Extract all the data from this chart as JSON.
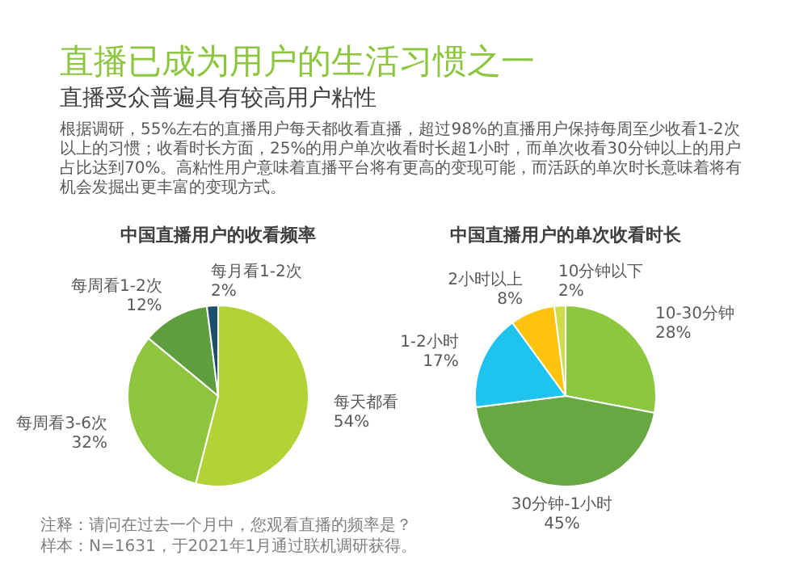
{
  "chart_data": [
    {
      "type": "other",
      "title": "直播已成为用户的生活习惯之一",
      "subtitle": "直播受众普遍具有较高用户粘性",
      "annotations": [
        "根据调研，55%左右的直播用户每天都收看直播，超过98%的直播用户保持每周至少收看1-2次以上的习惯；收看时长方面，25%的用户单次收看时长超1小时，而单次收看30分钟以上的用户占比达到70%。高粘性用户意味着直播平台将有更高的变现可能，而活跃的单次时长意味着将有机会发掘出更丰富的变现方式。"
      ]
    },
    {
      "type": "pie",
      "title": "中国直播用户的收看频率",
      "categories": [
        "每天都看",
        "每周看3-6次",
        "每周看1-2次",
        "每月看1-2次"
      ],
      "values": [
        54,
        32,
        12,
        2
      ],
      "value_labels": [
        "54%",
        "32%",
        "12%",
        "2%"
      ],
      "colors": [
        "#b3d236",
        "#8fc43e",
        "#5e9e3c",
        "#1c4e6e"
      ],
      "annotations": [
        "注释：请问在过去一个月中，您观看直播的频率是？",
        "样本：N=1631，于2021年1月通过联机调研获得。"
      ]
    },
    {
      "type": "pie",
      "title": "中国直播用户的单次收看时长",
      "categories": [
        "10-30分钟",
        "30分钟-1小时",
        "1-2小时",
        "2小时以上",
        "10分钟以下"
      ],
      "values": [
        28,
        45,
        17,
        8,
        2
      ],
      "value_labels": [
        "28%",
        "45%",
        "17%",
        "8%",
        "2%"
      ],
      "colors": [
        "#8dc63f",
        "#67a843",
        "#1ec3ee",
        "#ffc20e",
        "#cfdc4a"
      ]
    }
  ]
}
